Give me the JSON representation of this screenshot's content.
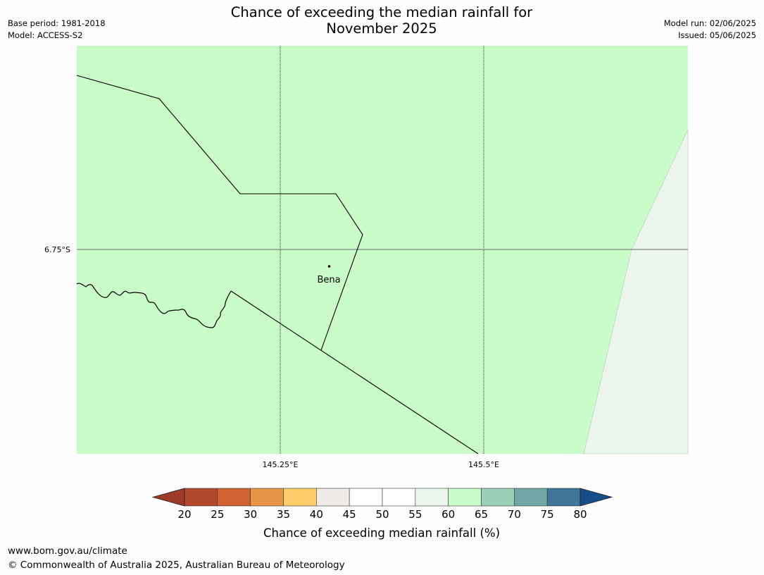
{
  "title": {
    "line1": "Chance of exceeding the median rainfall for",
    "line2": "November 2025"
  },
  "meta": {
    "base_period": "Base period: 1981-2018",
    "model": "Model: ACCESS-S2",
    "model_run": "Model run: 02/06/2025",
    "issued": "Issued: 05/06/2025"
  },
  "map": {
    "place_label": "Bena",
    "lat_label": "6.75°S",
    "lon_labels": [
      "145.25°E",
      "145.5°E"
    ],
    "main_fill_color": "#c9fcc9",
    "east_fill_color": "#ebf5eb"
  },
  "colorbar": {
    "ticks": [
      "20",
      "25",
      "30",
      "35",
      "40",
      "45",
      "50",
      "55",
      "60",
      "65",
      "70",
      "75",
      "80"
    ],
    "colors": [
      "#b3492c",
      "#cf6332",
      "#e59545",
      "#fece68",
      "#f0ebe7",
      "#ffffff",
      "#ffffff",
      "#ebf5eb",
      "#c9fcc9",
      "#9ccfb8",
      "#70a6a6",
      "#3e7599"
    ],
    "under_color": "#9e3b27",
    "over_color": "#154e8a",
    "label": "Chance of exceeding median rainfall (%)"
  },
  "footer": {
    "url": "www.bom.gov.au/climate",
    "copyright": "© Commonwealth of Australia 2025, Australian Bureau of Meteorology"
  }
}
